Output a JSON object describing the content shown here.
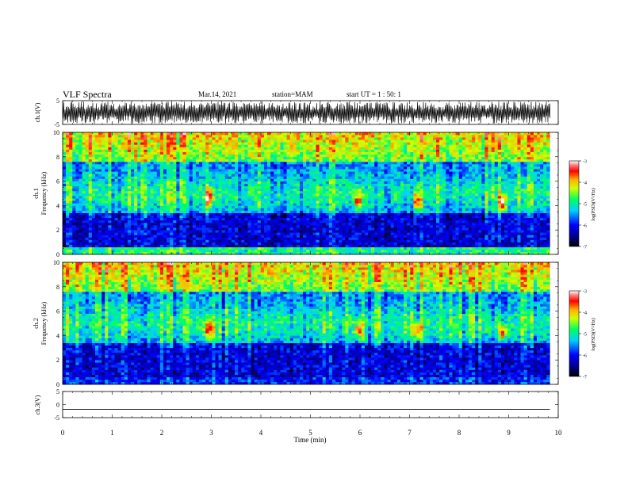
{
  "header": {
    "title": "VLF Spectra",
    "date": "Mar.14, 2021",
    "station": "station=MAM",
    "start": "start UT = 1 : 50: 1"
  },
  "chart_data": [
    {
      "type": "line",
      "panel": "waveform-ch1",
      "ylabel": "ch.1(V)",
      "ylim": [
        -5,
        5
      ],
      "y_ticks": [
        "5",
        "-5"
      ],
      "description_series": "dense impulsive waveform (sferics)"
    },
    {
      "type": "heatmap",
      "panel": "spectrogram-ch1",
      "ylabel_top": "ch.1",
      "ylabel": "Frequency (kHz)",
      "ylim": [
        0,
        10
      ],
      "y_ticks": [
        "0",
        "2",
        "4",
        "6",
        "8",
        "10"
      ],
      "xlim": [
        0,
        10
      ],
      "data_x_max": 9.83,
      "colorbar": {
        "label": "log(PSD)(V²/Hz)",
        "range": [
          -7,
          -3
        ],
        "ticks": [
          "-3",
          "-4",
          "-5",
          "-6",
          "-7"
        ]
      },
      "features": [
        {
          "t": 2.95,
          "f": 4.6,
          "level": -3.6
        },
        {
          "t": 5.97,
          "f": 4.4,
          "level": -3.8
        },
        {
          "t": 7.15,
          "f": 4.4,
          "level": -3.8
        },
        {
          "t": 8.88,
          "f": 4.3,
          "level": -3.7
        }
      ]
    },
    {
      "type": "heatmap",
      "panel": "spectrogram-ch2",
      "ylabel_top": "ch.2",
      "ylabel": "Frequency (kHz)",
      "ylim": [
        0,
        10
      ],
      "y_ticks": [
        "0",
        "2",
        "4",
        "6",
        "8",
        "10"
      ],
      "xlim": [
        0,
        10
      ],
      "data_x_max": 9.83,
      "colorbar": {
        "label": "log(PSD)(V²/Hz)",
        "range": [
          -7,
          -3
        ],
        "ticks": [
          "-3",
          "-4",
          "-5",
          "-6",
          "-7"
        ]
      },
      "features": [
        {
          "t": 2.95,
          "f": 4.5,
          "level": -3.6
        },
        {
          "t": 5.97,
          "f": 4.5,
          "level": -3.8
        },
        {
          "t": 7.15,
          "f": 4.4,
          "level": -3.8
        },
        {
          "t": 8.88,
          "f": 4.2,
          "level": -3.7
        }
      ]
    },
    {
      "type": "line",
      "panel": "waveform-ch3",
      "ylabel": "ch.3(V)",
      "ylim": [
        -5,
        5
      ],
      "y_ticks": [
        "5",
        "0",
        "-5"
      ],
      "series": [
        {
          "x": [
            0,
            9.83
          ],
          "y": [
            -1.8,
            -1.8
          ]
        }
      ]
    }
  ],
  "x_axis": {
    "label": "Time (min)",
    "range": [
      0,
      10
    ],
    "ticks": [
      "0",
      "1",
      "2",
      "3",
      "4",
      "5",
      "6",
      "7",
      "8",
      "9",
      "10"
    ]
  }
}
